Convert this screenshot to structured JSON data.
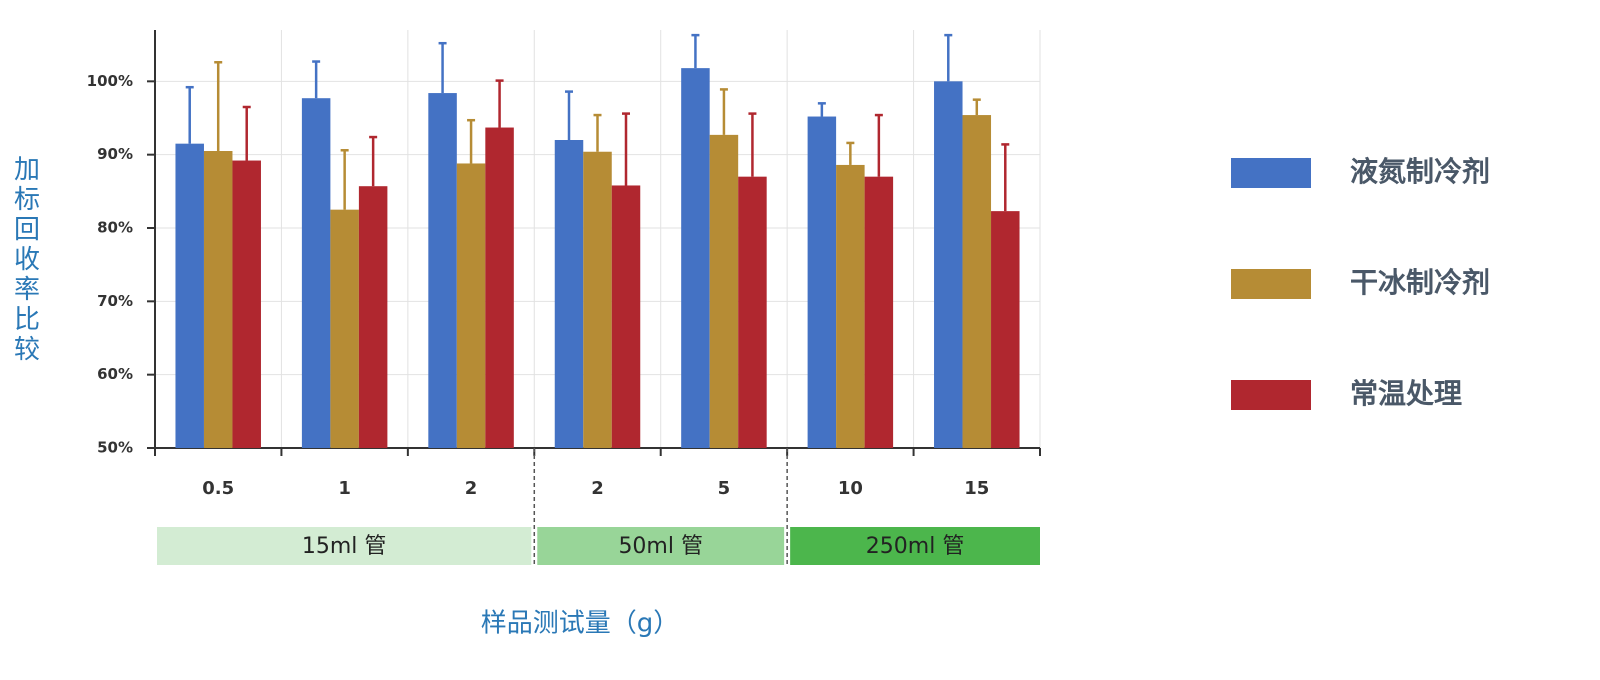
{
  "chart_data": {
    "type": "bar",
    "y_label": "加标回收率比较",
    "x_label": "样品测试量（g）",
    "groups": [
      {
        "label": "15ml 管",
        "color": "#d3ecd3",
        "categories": [
          "0.5",
          "1",
          "2"
        ]
      },
      {
        "label": "50ml 管",
        "color": "#98d598",
        "categories": [
          "2",
          "5"
        ]
      },
      {
        "label": "250ml 管",
        "color": "#4cb64c",
        "categories": [
          "10",
          "15"
        ]
      }
    ],
    "series": [
      {
        "name": "液氮制冷剂",
        "color": "#4472c4",
        "values": [
          91.5,
          97.7,
          98.4,
          92,
          101.8,
          95.2,
          100
        ],
        "errors": [
          7.7,
          5,
          6.8,
          6.6,
          4.5,
          1.8,
          6.3
        ]
      },
      {
        "name": "干冰制冷剂",
        "color": "#b68c35",
        "values": [
          90.5,
          82.5,
          88.8,
          90.4,
          92.7,
          88.6,
          95.4
        ],
        "errors": [
          12.1,
          8.1,
          5.9,
          5,
          6.2,
          3,
          2.1
        ]
      },
      {
        "name": "常温处理",
        "color": "#b0272f",
        "values": [
          89.2,
          85.7,
          93.7,
          85.8,
          87,
          87,
          82.3
        ],
        "errors": [
          7.3,
          6.7,
          6.4,
          9.8,
          8.6,
          8.4,
          9.1
        ]
      }
    ],
    "ylim": [
      50,
      107
    ],
    "yticks": [
      {
        "value": 50,
        "label": "50%"
      },
      {
        "value": 60,
        "label": "60%"
      },
      {
        "value": 70,
        "label": "70%"
      },
      {
        "value": 80,
        "label": "80%"
      },
      {
        "value": 90,
        "label": "90%"
      },
      {
        "value": 100,
        "label": "100%"
      }
    ],
    "grid": true,
    "legend": "right"
  }
}
